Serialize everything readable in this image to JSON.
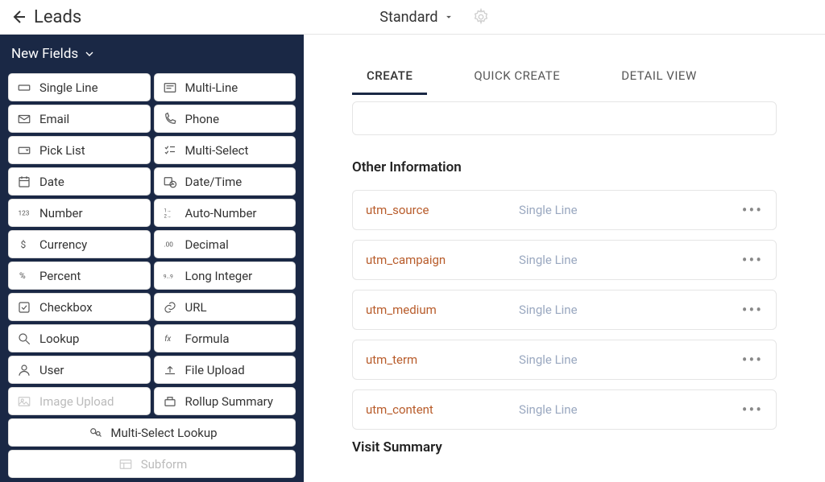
{
  "header": {
    "title": "Leads",
    "layout_name": "Standard"
  },
  "sidebar": {
    "title": "New Fields",
    "field_types": [
      {
        "label": "Single Line",
        "icon": "single-line"
      },
      {
        "label": "Multi-Line",
        "icon": "multi-line"
      },
      {
        "label": "Email",
        "icon": "email"
      },
      {
        "label": "Phone",
        "icon": "phone"
      },
      {
        "label": "Pick List",
        "icon": "picklist"
      },
      {
        "label": "Multi-Select",
        "icon": "multi-select"
      },
      {
        "label": "Date",
        "icon": "date"
      },
      {
        "label": "Date/Time",
        "icon": "datetime"
      },
      {
        "label": "Number",
        "icon": "number"
      },
      {
        "label": "Auto-Number",
        "icon": "auto-number"
      },
      {
        "label": "Currency",
        "icon": "currency"
      },
      {
        "label": "Decimal",
        "icon": "decimal"
      },
      {
        "label": "Percent",
        "icon": "percent"
      },
      {
        "label": "Long Integer",
        "icon": "long-int"
      },
      {
        "label": "Checkbox",
        "icon": "checkbox"
      },
      {
        "label": "URL",
        "icon": "url"
      },
      {
        "label": "Lookup",
        "icon": "lookup"
      },
      {
        "label": "Formula",
        "icon": "formula"
      },
      {
        "label": "User",
        "icon": "user"
      },
      {
        "label": "File Upload",
        "icon": "file-upload"
      },
      {
        "label": "Image Upload",
        "icon": "image-upload",
        "disabled": true
      },
      {
        "label": "Rollup Summary",
        "icon": "rollup"
      }
    ],
    "full_field_types": [
      {
        "label": "Multi-Select Lookup",
        "icon": "ms-lookup"
      },
      {
        "label": "Subform",
        "icon": "subform",
        "disabled": true
      }
    ]
  },
  "tabs": [
    {
      "label": "CREATE",
      "active": true
    },
    {
      "label": "QUICK CREATE",
      "active": false
    },
    {
      "label": "DETAIL VIEW",
      "active": false
    }
  ],
  "sections": [
    {
      "title": "Other Information",
      "fields": [
        {
          "name": "utm_source",
          "type": "Single Line"
        },
        {
          "name": "utm_campaign",
          "type": "Single Line"
        },
        {
          "name": "utm_medium",
          "type": "Single Line"
        },
        {
          "name": "utm_term",
          "type": "Single Line"
        },
        {
          "name": "utm_content",
          "type": "Single Line"
        }
      ]
    },
    {
      "title": "Visit Summary",
      "fields": []
    }
  ],
  "colors": {
    "sidebar_bg": "#1a2845",
    "field_name": "#b85c2b",
    "field_type": "#9aa8c0",
    "border": "#e5e5e5"
  }
}
